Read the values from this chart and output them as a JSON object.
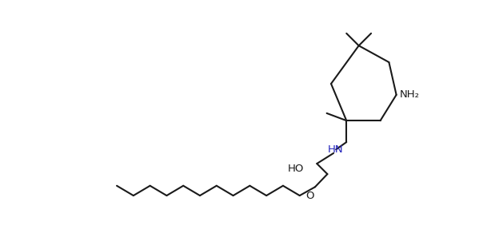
{
  "bg_color": "#ffffff",
  "line_color": "#1a1a1a",
  "text_color_black": "#1a1a1a",
  "text_color_blue": "#2222bb",
  "line_width": 1.5,
  "figsize": [
    6.14,
    2.97
  ],
  "dpi": 100,
  "nh2_text": "NH₂",
  "hn_text": "HN",
  "ho_text": "HO",
  "o_text": "O"
}
